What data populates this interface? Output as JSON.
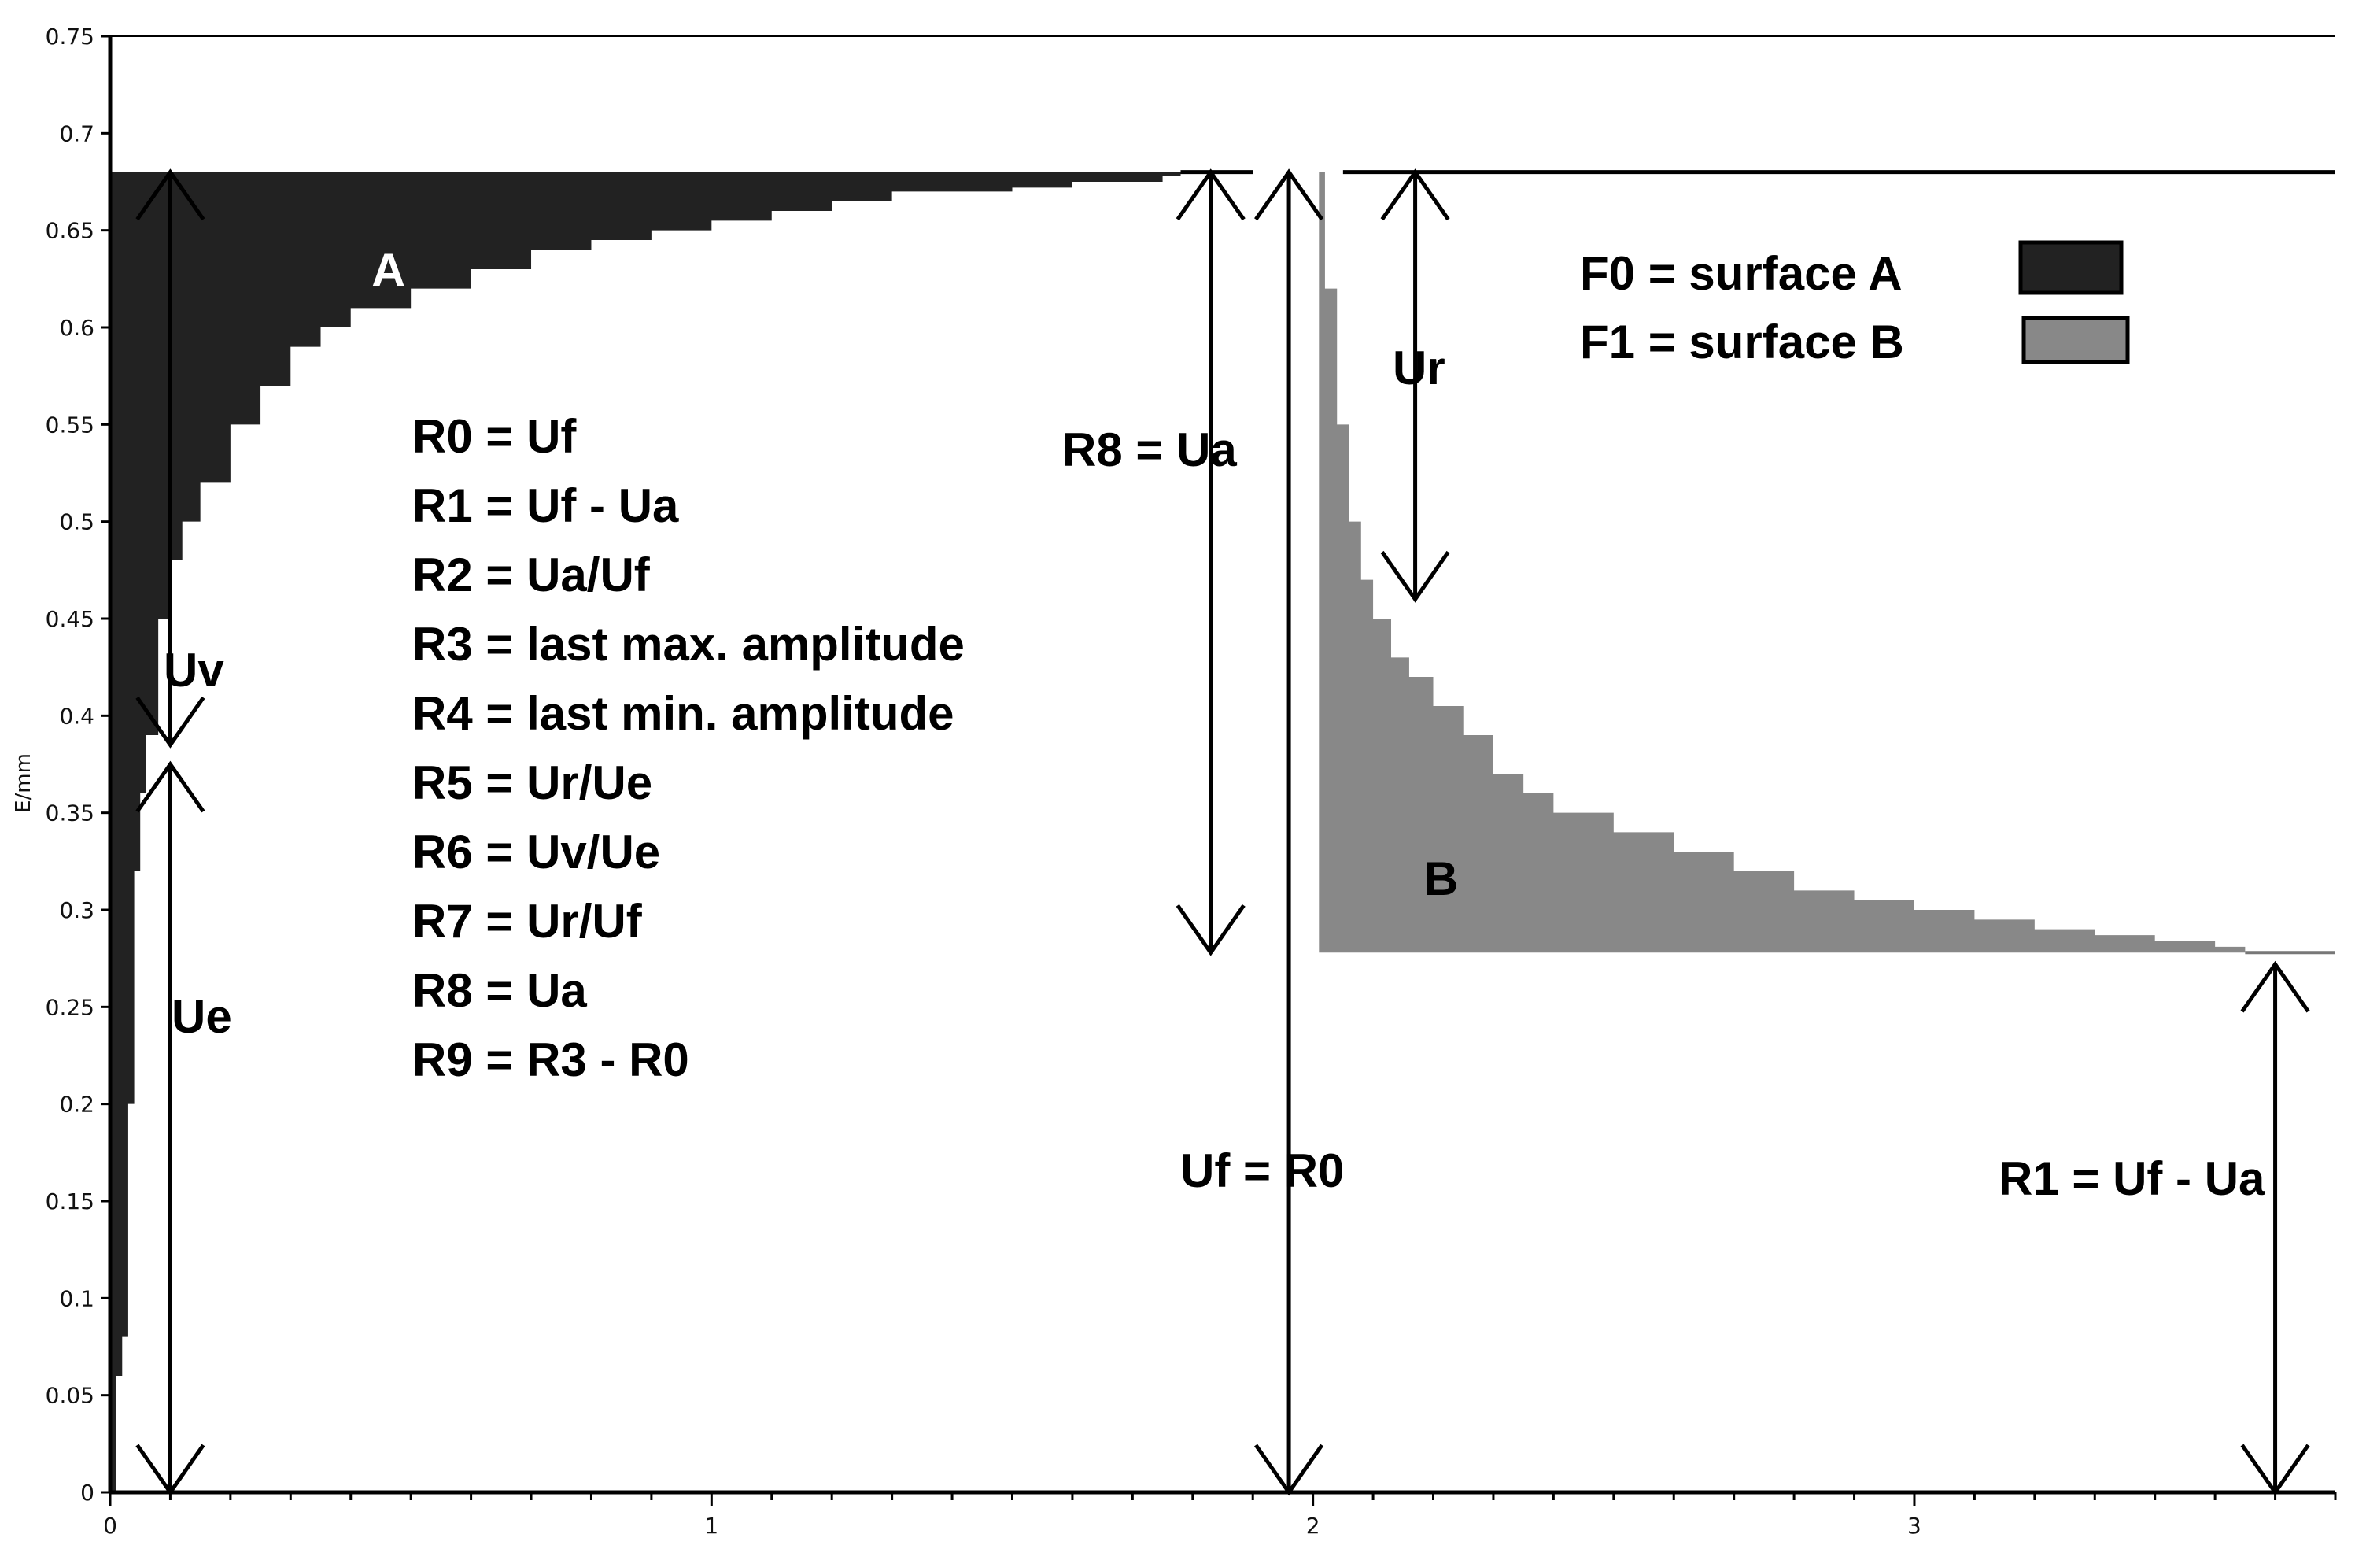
{
  "chart_data": {
    "type": "area",
    "ylabel": "E/mm",
    "xlabel": "",
    "xlim": [
      0,
      3.7
    ],
    "ylim": [
      0,
      0.75
    ],
    "x_ticks": [
      "0",
      "1",
      "2",
      "3"
    ],
    "x_tick_values": [
      0,
      1,
      2,
      3
    ],
    "y_ticks": [
      "0",
      "0.05",
      "0.1",
      "0.15",
      "0.2",
      "0.25",
      "0.3",
      "0.35",
      "0.4",
      "0.45",
      "0.5",
      "0.55",
      "0.6",
      "0.65",
      "0.7",
      "0.75"
    ],
    "y_tick_values": [
      0,
      0.05,
      0.1,
      0.15,
      0.2,
      0.25,
      0.3,
      0.35,
      0.4,
      0.45,
      0.5,
      0.55,
      0.6,
      0.65,
      0.7,
      0.75
    ],
    "reference_line_y": 0.68,
    "series": [
      {
        "label": "A",
        "color": "#222222",
        "upper": 0.68,
        "x": [
          0,
          0.01,
          0.02,
          0.03,
          0.04,
          0.05,
          0.06,
          0.08,
          0.1,
          0.12,
          0.15,
          0.2,
          0.25,
          0.3,
          0.35,
          0.4,
          0.5,
          0.6,
          0.7,
          0.8,
          0.9,
          1.0,
          1.1,
          1.2,
          1.3,
          1.4,
          1.5,
          1.6,
          1.7,
          1.75,
          1.78
        ],
        "y": [
          0.0,
          0.06,
          0.08,
          0.2,
          0.32,
          0.36,
          0.39,
          0.45,
          0.48,
          0.5,
          0.52,
          0.55,
          0.57,
          0.59,
          0.6,
          0.61,
          0.62,
          0.63,
          0.64,
          0.645,
          0.65,
          0.655,
          0.66,
          0.665,
          0.67,
          0.67,
          0.672,
          0.675,
          0.675,
          0.678,
          0.68
        ]
      },
      {
        "label": "B",
        "color": "#888888",
        "lower": 0.278,
        "x": [
          2.01,
          2.02,
          2.04,
          2.06,
          2.08,
          2.1,
          2.13,
          2.16,
          2.2,
          2.25,
          2.3,
          2.35,
          2.4,
          2.5,
          2.6,
          2.7,
          2.8,
          2.9,
          3.0,
          3.1,
          3.2,
          3.3,
          3.4,
          3.5,
          3.55
        ],
        "y": [
          0.68,
          0.62,
          0.55,
          0.5,
          0.47,
          0.45,
          0.43,
          0.42,
          0.405,
          0.39,
          0.37,
          0.36,
          0.35,
          0.34,
          0.33,
          0.32,
          0.31,
          0.305,
          0.3,
          0.295,
          0.29,
          0.287,
          0.284,
          0.281,
          0.278
        ]
      }
    ],
    "annotations": [
      {
        "text": "Uv"
      },
      {
        "text": "Ue"
      },
      {
        "text": "Ur"
      },
      {
        "text": "R8 = Ua"
      },
      {
        "text": "Uf = R0"
      },
      {
        "text": "R1 = Uf - Ua"
      }
    ],
    "legend": {
      "placement": "top-right",
      "entries": [
        {
          "label": "F0 = surface A",
          "color": "#222222"
        },
        {
          "label": "F1 = surface B",
          "color": "#888888"
        }
      ]
    },
    "formulas": [
      "R0 = Uf",
      "R1 = Uf - Ua",
      "R2 = Ua/Uf",
      "R3 = last max. amplitude",
      "R4 = last min.  amplitude",
      "R5 = Ur/Ue",
      "R6 = Uv/Ue",
      "R7 = Ur/Uf",
      "R8 = Ua",
      "R9 = R3 - R0"
    ]
  }
}
